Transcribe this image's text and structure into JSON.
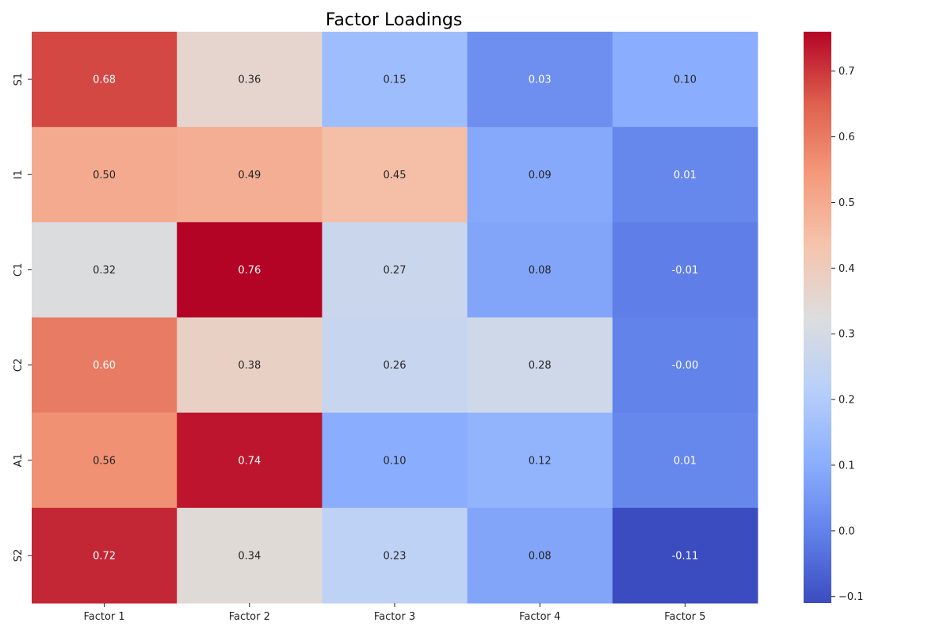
{
  "chart_data": {
    "type": "heatmap",
    "title": "Factor Loadings",
    "xlabel": "",
    "ylabel": "",
    "x_categories": [
      "Factor 1",
      "Factor 2",
      "Factor 3",
      "Factor 4",
      "Factor 5"
    ],
    "y_categories": [
      "S1",
      "I1",
      "C1",
      "C2",
      "A1",
      "S2"
    ],
    "values": [
      [
        0.68,
        0.36,
        0.15,
        0.03,
        0.1
      ],
      [
        0.5,
        0.49,
        0.45,
        0.09,
        0.01
      ],
      [
        0.32,
        0.76,
        0.27,
        0.08,
        -0.01
      ],
      [
        0.6,
        0.38,
        0.26,
        0.28,
        -0.0
      ],
      [
        0.56,
        0.74,
        0.1,
        0.12,
        0.01
      ],
      [
        0.72,
        0.34,
        0.23,
        0.08,
        -0.11
      ]
    ],
    "value_labels": [
      [
        "0.68",
        "0.36",
        "0.15",
        "0.03",
        "0.10"
      ],
      [
        "0.50",
        "0.49",
        "0.45",
        "0.09",
        "0.01"
      ],
      [
        "0.32",
        "0.76",
        "0.27",
        "0.08",
        "-0.01"
      ],
      [
        "0.60",
        "0.38",
        "0.26",
        "0.28",
        "-0.00"
      ],
      [
        "0.56",
        "0.74",
        "0.10",
        "0.12",
        "0.01"
      ],
      [
        "0.72",
        "0.34",
        "0.23",
        "0.08",
        "-0.11"
      ]
    ],
    "colormap": "coolwarm",
    "color_range": [
      -0.11,
      0.76
    ],
    "colorbar": {
      "ticks": [
        -0.1,
        0.0,
        0.1,
        0.2,
        0.3,
        0.4,
        0.5,
        0.6,
        0.7
      ],
      "tick_labels": [
        "−0.1",
        "0.0",
        "0.1",
        "0.2",
        "0.3",
        "0.4",
        "0.5",
        "0.6",
        "0.7"
      ],
      "placement": "right"
    },
    "grid": false
  }
}
